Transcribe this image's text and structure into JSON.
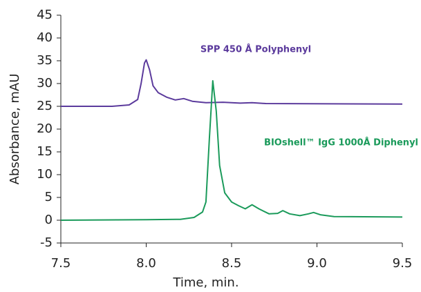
{
  "chart_data": {
    "type": "line",
    "x_label": "Time, min.",
    "y_label": "Absorbance, mAU",
    "xlim": [
      7.5,
      9.5
    ],
    "ylim": [
      -5,
      45
    ],
    "xticks": [
      7.5,
      {
        "value": 8,
        "label": "8.0"
      },
      8.5,
      {
        "value": 9,
        "label": "9.0"
      },
      9.5
    ],
    "yticks": [
      -5,
      0,
      5,
      10,
      15,
      20,
      25,
      30,
      35,
      40,
      45
    ],
    "legend": "direct",
    "series": [
      {
        "name": "SPP 450 Å Polyphenyl",
        "color": "#5b3a9c",
        "x": [
          7.5,
          7.8,
          7.9,
          7.95,
          7.97,
          7.99,
          8.0,
          8.02,
          8.04,
          8.07,
          8.12,
          8.17,
          8.22,
          8.27,
          8.35,
          8.45,
          8.55,
          8.62,
          8.7,
          9.5
        ],
        "values": [
          25,
          25,
          25.3,
          26.5,
          30,
          34.5,
          35.2,
          33,
          29.5,
          28,
          27,
          26.4,
          26.7,
          26.1,
          25.8,
          25.9,
          25.7,
          25.8,
          25.6,
          25.5
        ]
      },
      {
        "name": "BIOshell™ IgG 1000Å Diphenyl",
        "color": "#1a9a5a",
        "x": [
          7.5,
          8.0,
          8.2,
          8.28,
          8.33,
          8.35,
          8.37,
          8.39,
          8.41,
          8.43,
          8.46,
          8.5,
          8.54,
          8.58,
          8.62,
          8.66,
          8.72,
          8.77,
          8.8,
          8.84,
          8.9,
          8.95,
          8.98,
          9.02,
          9.1,
          9.5
        ],
        "values": [
          0,
          0.1,
          0.2,
          0.6,
          1.8,
          4,
          18,
          30.6,
          24,
          12,
          6,
          4,
          3.2,
          2.5,
          3.4,
          2.5,
          1.4,
          1.5,
          2.1,
          1.4,
          1,
          1.4,
          1.7,
          1.2,
          0.8,
          0.7
        ]
      }
    ]
  }
}
